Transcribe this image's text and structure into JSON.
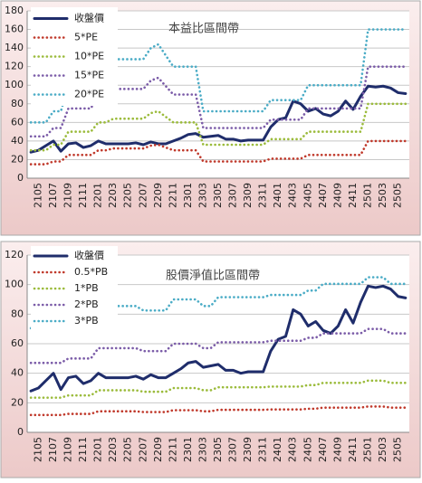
{
  "chart_data": [
    {
      "type": "line",
      "title": "本益比區間帶",
      "categories": [
        null,
        "2105",
        null,
        "2107",
        null,
        "2109",
        null,
        "2111",
        null,
        "2201",
        null,
        "2203",
        null,
        "2205",
        null,
        "2207",
        null,
        "2209",
        null,
        "2211",
        null,
        "2301",
        null,
        "2303",
        null,
        "2305",
        null,
        "2307",
        null,
        "2309",
        null,
        "2311",
        null,
        "2401",
        null,
        "2403",
        null,
        "2405",
        null,
        "2407",
        null,
        "2409",
        null,
        "2411",
        null,
        "2501",
        null,
        "2503",
        null,
        "2505",
        null
      ],
      "series": [
        {
          "name": "收盤價",
          "color": "#1f2d6b",
          "style": "solid",
          "values": [
            28,
            30,
            35,
            40,
            29,
            37,
            38,
            33,
            35,
            40,
            37,
            37,
            37,
            37,
            38,
            36,
            39,
            37,
            37,
            40,
            43,
            47,
            48,
            44,
            45,
            46,
            42,
            42,
            40,
            41,
            41,
            41,
            55,
            63,
            65,
            83,
            80,
            72,
            75,
            69,
            67,
            72,
            83,
            74,
            88,
            99,
            98,
            99,
            97,
            92,
            91
          ]
        },
        {
          "name": "5*PE",
          "color": "#c0392b",
          "style": "dotted",
          "values": [
            15,
            15,
            15,
            18,
            18,
            25,
            25,
            25,
            25,
            30,
            30,
            32,
            32,
            32,
            32,
            32,
            35,
            36,
            33,
            30,
            30,
            30,
            30,
            18,
            18,
            18,
            18,
            18,
            18,
            18,
            18,
            18,
            21,
            21,
            21,
            21,
            21,
            25,
            25,
            25,
            25,
            25,
            25,
            25,
            25,
            40,
            40,
            40,
            40,
            40,
            40
          ]
        },
        {
          "name": "10*PE",
          "color": "#9bbb3b",
          "style": "dotted",
          "values": [
            30,
            30,
            30,
            36,
            36,
            50,
            50,
            50,
            50,
            60,
            60,
            64,
            64,
            64,
            64,
            64,
            70,
            72,
            66,
            60,
            60,
            60,
            60,
            36,
            36,
            36,
            36,
            36,
            36,
            36,
            36,
            36,
            42,
            42,
            42,
            42,
            42,
            50,
            50,
            50,
            50,
            50,
            50,
            50,
            50,
            80,
            80,
            80,
            80,
            80,
            80
          ]
        },
        {
          "name": "15*PE",
          "color": "#7b5ca8",
          "style": "dotted",
          "values": [
            45,
            45,
            45,
            54,
            54,
            75,
            75,
            75,
            75,
            90,
            90,
            96,
            96,
            96,
            96,
            96,
            105,
            108,
            99,
            90,
            90,
            90,
            90,
            54,
            54,
            54,
            54,
            54,
            54,
            54,
            54,
            54,
            63,
            63,
            63,
            63,
            63,
            75,
            75,
            75,
            75,
            75,
            75,
            75,
            75,
            120,
            120,
            120,
            120,
            120,
            120
          ]
        },
        {
          "name": "20*PE",
          "color": "#4bacc6",
          "style": "dotted",
          "values": [
            60,
            60,
            60,
            72,
            72,
            100,
            100,
            100,
            100,
            120,
            120,
            128,
            128,
            128,
            128,
            128,
            140,
            144,
            132,
            120,
            120,
            120,
            120,
            72,
            72,
            72,
            72,
            72,
            72,
            72,
            72,
            72,
            84,
            84,
            84,
            84,
            84,
            100,
            100,
            100,
            100,
            100,
            100,
            100,
            100,
            160,
            160,
            160,
            160,
            160,
            160
          ]
        }
      ],
      "ylim": [
        0,
        180
      ],
      "yticks": [
        0,
        20,
        40,
        60,
        80,
        100,
        120,
        140,
        160,
        180
      ],
      "grid": true,
      "legend": "upper left"
    },
    {
      "type": "line",
      "title": "股價淨值比區間帶",
      "categories": [
        null,
        "2105",
        null,
        "2107",
        null,
        "2109",
        null,
        "2111",
        null,
        "2201",
        null,
        "2203",
        null,
        "2205",
        null,
        "2207",
        null,
        "2209",
        null,
        "2211",
        null,
        "2301",
        null,
        "2303",
        null,
        "2305",
        null,
        "2307",
        null,
        "2309",
        null,
        "2311",
        null,
        "2401",
        null,
        "2403",
        null,
        "2405",
        null,
        "2407",
        null,
        "2409",
        null,
        "2411",
        null,
        "2501",
        null,
        "2503",
        null,
        "2505",
        null
      ],
      "series": [
        {
          "name": "收盤價",
          "color": "#1f2d6b",
          "style": "solid",
          "values": [
            28,
            30,
            35,
            40,
            29,
            37,
            38,
            33,
            35,
            40,
            37,
            37,
            37,
            37,
            38,
            36,
            39,
            37,
            37,
            40,
            43,
            47,
            48,
            44,
            45,
            46,
            42,
            42,
            40,
            41,
            41,
            41,
            55,
            63,
            65,
            83,
            80,
            72,
            75,
            69,
            67,
            72,
            83,
            74,
            88,
            99,
            98,
            99,
            97,
            92,
            91
          ]
        },
        {
          "name": "0.5*PB",
          "color": "#c0392b",
          "style": "dotted",
          "values": [
            11.75,
            11.75,
            11.75,
            11.75,
            11.75,
            12.5,
            12.5,
            12.5,
            12.5,
            14.25,
            14.25,
            14.25,
            14.25,
            14.25,
            14.25,
            13.75,
            13.75,
            13.75,
            13.75,
            15,
            15,
            15,
            15,
            14.25,
            14.25,
            15.25,
            15.25,
            15.25,
            15.25,
            15.25,
            15.25,
            15.25,
            15.5,
            15.5,
            15.5,
            15.5,
            15.5,
            16,
            16,
            16.75,
            16.75,
            16.75,
            16.75,
            16.75,
            16.75,
            17.5,
            17.5,
            17.5,
            16.75,
            16.75,
            16.75
          ]
        },
        {
          "name": "1*PB",
          "color": "#9bbb3b",
          "style": "dotted",
          "values": [
            23.5,
            23.5,
            23.5,
            23.5,
            23.5,
            25,
            25,
            25,
            25,
            28.5,
            28.5,
            28.5,
            28.5,
            28.5,
            28.5,
            27.5,
            27.5,
            27.5,
            27.5,
            30,
            30,
            30,
            30,
            28.5,
            28.5,
            30.5,
            30.5,
            30.5,
            30.5,
            30.5,
            30.5,
            30.5,
            31,
            31,
            31,
            31,
            31,
            32,
            32,
            33.5,
            33.5,
            33.5,
            33.5,
            33.5,
            33.5,
            35,
            35,
            35,
            33.5,
            33.5,
            33.5
          ]
        },
        {
          "name": "2*PB",
          "color": "#7b5ca8",
          "style": "dotted",
          "values": [
            47,
            47,
            47,
            47,
            47,
            50,
            50,
            50,
            50,
            57,
            57,
            57,
            57,
            57,
            57,
            55,
            55,
            55,
            55,
            60,
            60,
            60,
            60,
            57,
            57,
            61,
            61,
            61,
            61,
            61,
            61,
            61,
            62,
            62,
            62,
            62,
            62,
            64,
            64,
            67,
            67,
            67,
            67,
            67,
            67,
            70,
            70,
            70,
            67,
            67,
            67
          ]
        },
        {
          "name": "3*PB",
          "color": "#4bacc6",
          "style": "dotted",
          "values": [
            70.5,
            70.5,
            70.5,
            70.5,
            70.5,
            75,
            75,
            75,
            75,
            85.5,
            85.5,
            85.5,
            85.5,
            85.5,
            85.5,
            82.5,
            82.5,
            82.5,
            82.5,
            90,
            90,
            90,
            90,
            85.5,
            85.5,
            91.5,
            91.5,
            91.5,
            91.5,
            91.5,
            91.5,
            91.5,
            93,
            93,
            93,
            93,
            93,
            96,
            96,
            100.5,
            100.5,
            100.5,
            100.5,
            100.5,
            100.5,
            105,
            105,
            105,
            100.5,
            100.5,
            100.5
          ]
        }
      ],
      "ylim": [
        0,
        120
      ],
      "yticks": [
        0,
        20,
        40,
        60,
        80,
        100,
        120
      ],
      "grid": true,
      "legend": "upper left"
    }
  ]
}
